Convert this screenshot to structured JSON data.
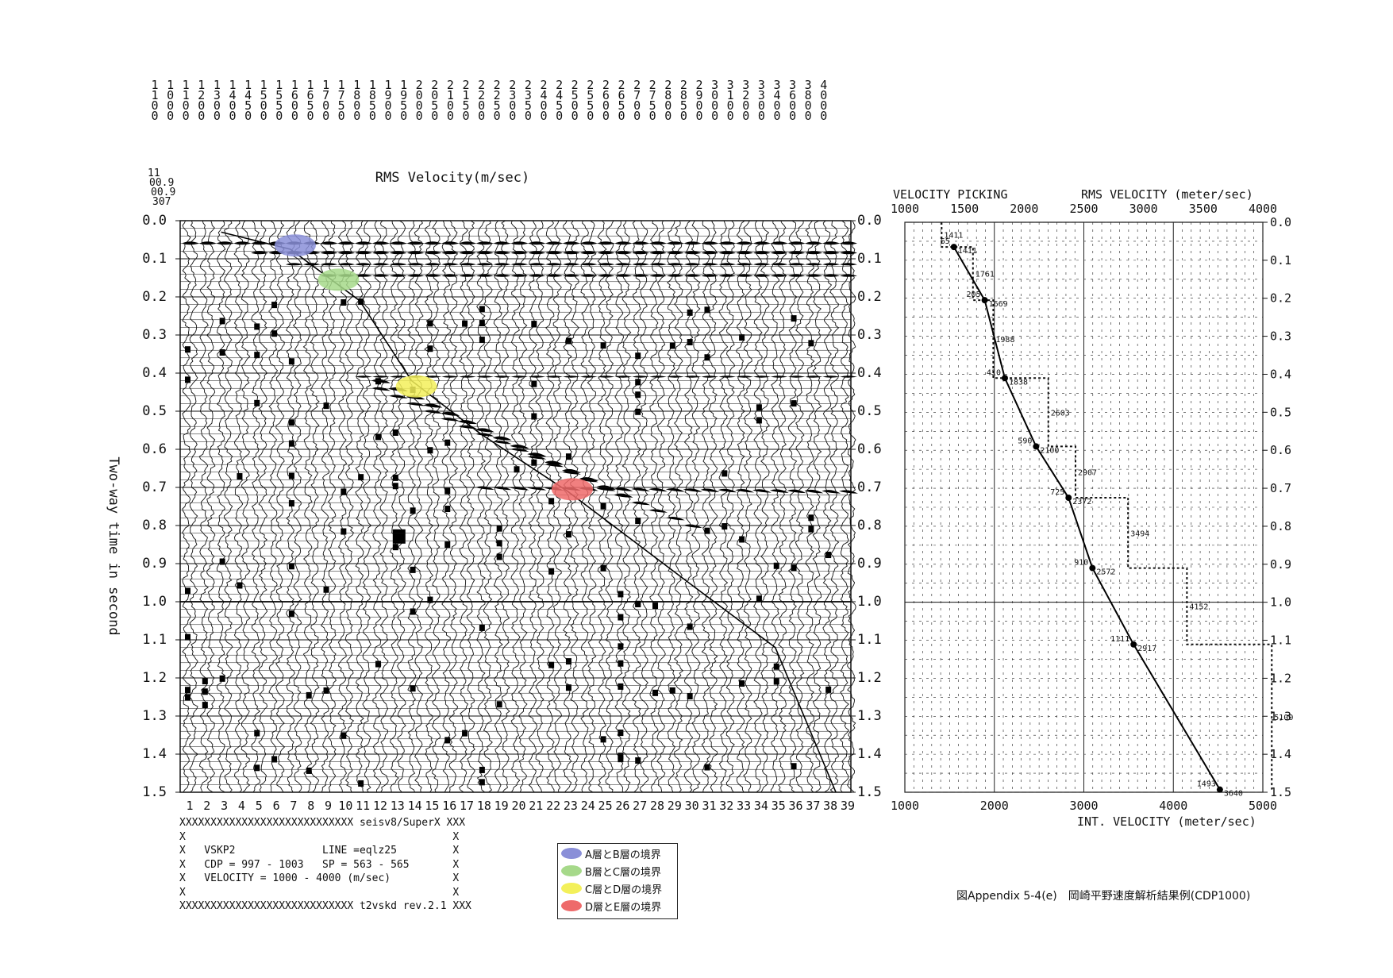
{
  "top_scale": {
    "velocities": [
      "1100",
      "1000",
      "1100",
      "1200",
      "1300",
      "1400",
      "1450",
      "1500",
      "1550",
      "1600",
      "1650",
      "1700",
      "1750",
      "1800",
      "1850",
      "1900",
      "1950",
      "2000",
      "2050",
      "2100",
      "2150",
      "2200",
      "2250",
      "2300",
      "2350",
      "2400",
      "2450",
      "2500",
      "2550",
      "2600",
      "2650",
      "2700",
      "2750",
      "2800",
      "2850",
      "2900",
      "3000",
      "3100",
      "3200",
      "3300",
      "3400",
      "3600",
      "3800",
      "4000"
    ]
  },
  "left_panel": {
    "title": "RMS Velocity(m/sec)",
    "ylabel": "Two-way time in second",
    "corner_labels": [
      "11",
      "00.9",
      "00.9",
      "307"
    ],
    "yticks": [
      "0.0",
      "0.1",
      "0.2",
      "0.3",
      "0.4",
      "0.5",
      "0.6",
      "0.7",
      "0.8",
      "0.9",
      "1.0",
      "1.1",
      "1.2",
      "1.3",
      "1.4",
      "1.5"
    ],
    "xticks": [
      "1",
      "2",
      "3",
      "4",
      "5",
      "6",
      "7",
      "8",
      "9",
      "10",
      "11",
      "12",
      "13",
      "14",
      "15",
      "16",
      "17",
      "18",
      "19",
      "20",
      "21",
      "22",
      "23",
      "24",
      "25",
      "26",
      "27",
      "28",
      "29",
      "30",
      "31",
      "32",
      "33",
      "34",
      "35",
      "36",
      "37",
      "38",
      "39"
    ],
    "info_lines": [
      "XXXXXXXXXXXXXXXXXXXXXXXXXXXX seisv8/SuperX XXX",
      "X                                           X",
      "X   VSKP2              LINE =eqlz25         X",
      "X   CDP = 997 - 1003   SP = 563 - 565       X",
      "X   VELOCITY = 1000 - 4000 (m/sec)          X",
      "X                                           X",
      "XXXXXXXXXXXXXXXXXXXXXXXXXXXX t2vskd rev.2.1 XXX"
    ]
  },
  "legend": {
    "items": [
      {
        "label": "A層とB層の境界",
        "color": "#8a8fd8"
      },
      {
        "label": "B層とC層の境界",
        "color": "#a6d98a"
      },
      {
        "label": "C層とD層の境界",
        "color": "#f3f05a"
      },
      {
        "label": "D層とE層の境界",
        "color": "#ee6a6a"
      }
    ]
  },
  "caption": "図Appendix 5-4(e)　岡崎平野速度解析結果例(CDP1000)",
  "chart_data": [
    {
      "type": "scatter",
      "title": "RMS Velocity(m/sec)",
      "ylabel": "Two-way time in second",
      "ylim": [
        1.5,
        0.0
      ],
      "horizon_markers": [
        {
          "label": "A層とB層の境界",
          "trace": 7,
          "t": 0.065,
          "color": "#8a8fd8"
        },
        {
          "label": "B層とC層の境界",
          "trace": 9.5,
          "t": 0.155,
          "color": "#a6d98a"
        },
        {
          "label": "C層とD層の境界",
          "trace": 14,
          "t": 0.435,
          "color": "#f3f05a"
        },
        {
          "label": "D層とE層の境界",
          "trace": 23,
          "t": 0.705,
          "color": "#ee6a6a"
        }
      ]
    },
    {
      "type": "line",
      "title": "VELOCITY PICKING",
      "top_axis_label": "RMS VELOCITY (meter/sec)",
      "bottom_axis_label": "INT. VELOCITY (meter/sec)",
      "top_ticks": [
        "1000",
        "1500",
        "2000",
        "2500",
        "3000",
        "3500",
        "4000"
      ],
      "bottom_ticks": [
        "1000",
        "2000",
        "3000",
        "4000",
        "5000"
      ],
      "yticks": [
        "0.0",
        "0.1",
        "0.2",
        "0.3",
        "0.4",
        "0.5",
        "0.6",
        "0.7",
        "0.8",
        "0.9",
        "1.0",
        "1.1",
        "1.2",
        "1.3",
        "1.4",
        "1.5"
      ],
      "rms_xlim": [
        1000,
        4000
      ],
      "int_xlim": [
        1000,
        5000
      ],
      "ylim": [
        1.5,
        0.0
      ],
      "rms_picks": [
        {
          "t": 0.065,
          "v": 1411,
          "time_label": "65",
          "vel_label": "1411"
        },
        {
          "t": 0.205,
          "v": 1669,
          "time_label": "205",
          "vel_label": "1669"
        },
        {
          "t": 0.41,
          "v": 1838,
          "time_label": "410",
          "vel_label": "1838"
        },
        {
          "t": 0.59,
          "v": 2100,
          "time_label": "590",
          "vel_label": "2100"
        },
        {
          "t": 0.725,
          "v": 2372,
          "time_label": "725",
          "vel_label": "2372"
        },
        {
          "t": 0.91,
          "v": 2572,
          "time_label": "910",
          "vel_label": "2572"
        },
        {
          "t": 1.111,
          "v": 2917,
          "time_label": "1111",
          "vel_label": "2917"
        },
        {
          "t": 1.493,
          "v": 3640,
          "time_label": "1493",
          "vel_label": "3640"
        }
      ],
      "interval_velocity": [
        {
          "t0": 0.0,
          "t1": 0.065,
          "v": 1411,
          "label": "1411"
        },
        {
          "t0": 0.065,
          "t1": 0.205,
          "v": 1761,
          "label": "1761"
        },
        {
          "t0": 0.205,
          "t1": 0.41,
          "v": 1988,
          "label": "1988"
        },
        {
          "t0": 0.41,
          "t1": 0.59,
          "v": 2603,
          "label": "2603"
        },
        {
          "t0": 0.59,
          "t1": 0.725,
          "v": 2907,
          "label": "2907"
        },
        {
          "t0": 0.725,
          "t1": 0.91,
          "v": 3494,
          "label": "3494"
        },
        {
          "t0": 0.91,
          "t1": 1.111,
          "v": 4152,
          "label": "4152"
        },
        {
          "t0": 1.111,
          "t1": 1.493,
          "v": 5100,
          "label": "5100"
        }
      ]
    }
  ]
}
